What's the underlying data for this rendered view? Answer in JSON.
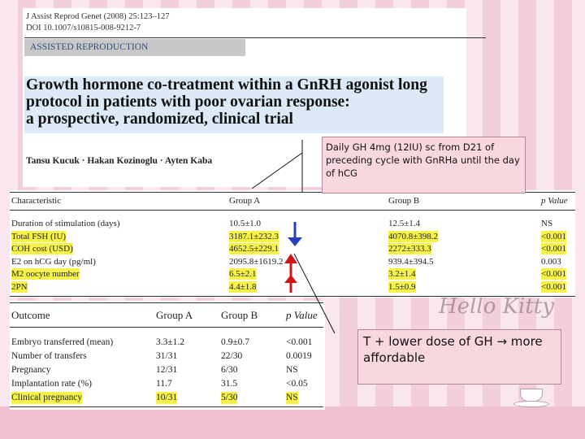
{
  "citation": {
    "line1": "J Assist Reprod Genet (2008) 25:123–127",
    "line2": "DOI 10.1007/s10815-008-9212-7"
  },
  "section_label": "ASSISTED REPRODUCTION",
  "title": {
    "line1": "Growth hormone co-treatment within a GnRH agonist long",
    "line2": "protocol in patients with poor ovarian response:",
    "line3": "a prospective, randomized, clinical trial"
  },
  "authors": "Tansu Kucuk · Hakan Kozinoglu · Ayten Kaba",
  "callout_top": "Daily GH 4mg (12IU) sc from D21 of preceding cycle with GnRHa until the day of hCG",
  "callout_bottom": "T + lower dose of GH → more affordable",
  "table1": {
    "headers": [
      "Characteristic",
      "Group A",
      "Group B",
      "p Value"
    ],
    "rows": [
      {
        "label": "Duration of stimulation (days)",
        "a": "10.5±1.0",
        "b": "12.5±1.4",
        "p": "NS",
        "highlight": false
      },
      {
        "label": "Total FSH (IU)",
        "a": "3187.1±232.3",
        "b": "4070.8±398.2",
        "p": "<0.001",
        "highlight": true
      },
      {
        "label": "COH cost (USD)",
        "a": "4652.5±229.1",
        "b": "2272±333.3",
        "p": "<0.001",
        "highlight": true
      },
      {
        "label": "E2 on hCG day (pg/ml)",
        "a": "2095.8±1619.2",
        "b": "939.4±394.5",
        "p": "0.003",
        "highlight": false
      },
      {
        "label": "M2 oocyte number",
        "a": "6.5±2.1",
        "b": "3.2±1.4",
        "p": "<0.001",
        "highlight": true
      },
      {
        "label": "2PN",
        "a": "4.4±1.8",
        "b": "1.5±0.9",
        "p": "<0.001",
        "highlight": true
      }
    ]
  },
  "table2": {
    "headers": [
      "Outcome",
      "Group A",
      "Group B",
      "p Value"
    ],
    "rows": [
      {
        "label": "Embryo transferred (mean)",
        "a": "3.3±1.2",
        "b": "0.9±0.7",
        "p": "<0.001",
        "highlight": false
      },
      {
        "label": "Number of transfers",
        "a": "31/31",
        "b": "22/30",
        "p": "0.0019",
        "highlight": false
      },
      {
        "label": "Pregnancy",
        "a": "12/31",
        "b": "6/30",
        "p": "NS",
        "highlight": false
      },
      {
        "label": "Implantation rate (%)",
        "a": "11.7",
        "b": "31.5",
        "p": "<0.05",
        "highlight": false
      },
      {
        "label": "Clinical pregnancy",
        "a": "10/31",
        "b": "5/30",
        "p": "NS",
        "highlight": true
      }
    ]
  },
  "background_text": "Hello Kitty",
  "colors": {
    "highlight": "#f7f24a",
    "callout_bg": "#f9d7df",
    "arrow_down": "#2a3fc0",
    "arrow_up": "#d01515",
    "title_bg": "#dbeaf6"
  }
}
